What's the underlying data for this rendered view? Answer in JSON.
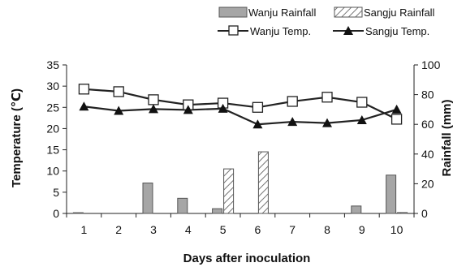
{
  "chart_data": {
    "type": "bar+line",
    "title": "",
    "xlabel": "Days after inoculation",
    "ylabel_left": "Temperature (℃)",
    "ylabel_right": "Rainfall (mm)",
    "x": [
      1,
      2,
      3,
      4,
      5,
      6,
      7,
      8,
      9,
      10
    ],
    "x_tick_labels": [
      "1",
      "2",
      "3",
      "4",
      "5",
      "6",
      "7",
      "8",
      "9",
      "10"
    ],
    "ylim_left": [
      0,
      35
    ],
    "yticks_left": [
      "0",
      "5",
      "10",
      "15",
      "20",
      "25",
      "30",
      "35"
    ],
    "ylim_right": [
      0,
      100
    ],
    "yticks_right": [
      "0",
      "20",
      "40",
      "60",
      "80",
      "100"
    ],
    "grid": false,
    "legend_position": "top-right",
    "bar_series": [
      {
        "name": "Wanju Rainfall",
        "axis": "right",
        "fill": "#a6a6a6",
        "pattern": "solid",
        "values": [
          0.5,
          0,
          20.5,
          10.2,
          3.2,
          0,
          0,
          0,
          5.0,
          25.8
        ]
      },
      {
        "name": "Sangju Rainfall",
        "axis": "right",
        "fill": "#ffffff",
        "pattern": "hatch",
        "values": [
          0,
          0,
          0,
          0,
          30.0,
          41.5,
          0,
          0,
          0,
          0.6
        ]
      }
    ],
    "line_series": [
      {
        "name": "Wanju Temp.",
        "axis": "left",
        "marker": "square",
        "values": [
          29.3,
          28.7,
          26.8,
          25.6,
          26.0,
          25.0,
          26.4,
          27.4,
          26.2,
          22.2
        ]
      },
      {
        "name": "Sangju Temp.",
        "axis": "left",
        "marker": "triangle",
        "values": [
          25.2,
          24.2,
          24.6,
          24.4,
          24.7,
          21.0,
          21.6,
          21.3,
          22.0,
          24.5
        ]
      }
    ]
  }
}
